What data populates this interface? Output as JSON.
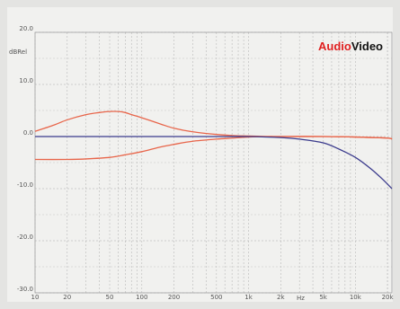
{
  "chart_data": {
    "type": "line",
    "ylabel": "dBRel",
    "xlabel": "Hz",
    "x_scale": "log",
    "xlim": [
      10,
      22000
    ],
    "ylim": [
      -30,
      20
    ],
    "grid": true,
    "x_ticks": [
      10,
      20,
      50,
      100,
      200,
      500,
      1000,
      2000,
      5000,
      10000,
      20000
    ],
    "x_tick_labels": [
      "10",
      "20",
      "50",
      "100",
      "200",
      "500",
      "1k",
      "2k",
      "5k",
      "10k",
      "20k"
    ],
    "y_ticks": [
      20,
      10,
      0,
      -10,
      -20,
      -30
    ],
    "y_tick_labels": [
      "20.0",
      "10.0",
      "0.0",
      "-10.0",
      "-20.0",
      "-30.0"
    ],
    "series": [
      {
        "color": "#e8654a",
        "x": [
          10,
          15,
          20,
          30,
          40,
          50,
          60,
          70,
          80,
          100,
          150,
          200,
          300,
          500,
          700,
          1000,
          1500,
          2000,
          5000,
          10000,
          20000,
          22000
        ],
        "y": [
          1.0,
          2.2,
          3.2,
          4.2,
          4.6,
          4.8,
          4.8,
          4.6,
          4.2,
          3.6,
          2.4,
          1.6,
          0.9,
          0.4,
          0.2,
          0.1,
          0.0,
          0.0,
          0.0,
          -0.1,
          -0.3,
          -0.5
        ]
      },
      {
        "color": "#e8654a",
        "x": [
          10,
          20,
          30,
          50,
          70,
          100,
          150,
          200,
          300,
          500,
          700,
          1000,
          1500,
          2000,
          5000,
          10000,
          20000,
          22000
        ],
        "y": [
          -4.4,
          -4.4,
          -4.3,
          -4.0,
          -3.5,
          -2.9,
          -2.0,
          -1.5,
          -0.9,
          -0.5,
          -0.3,
          -0.1,
          0.0,
          0.0,
          0.0,
          -0.1,
          -0.3,
          -0.5
        ]
      },
      {
        "color": "#3a3a8c",
        "x": [
          10,
          100,
          500,
          1000,
          2000,
          3000,
          5000,
          7000,
          10000,
          14000,
          18000,
          22000
        ],
        "y": [
          0.0,
          0.0,
          0.0,
          0.0,
          -0.2,
          -0.5,
          -1.2,
          -2.4,
          -4.0,
          -6.2,
          -8.2,
          -10.0
        ]
      }
    ]
  },
  "logo": {
    "text_red": "Audio",
    "text_black": "Video",
    "color_red": "#e02020",
    "color_black": "#111111"
  }
}
